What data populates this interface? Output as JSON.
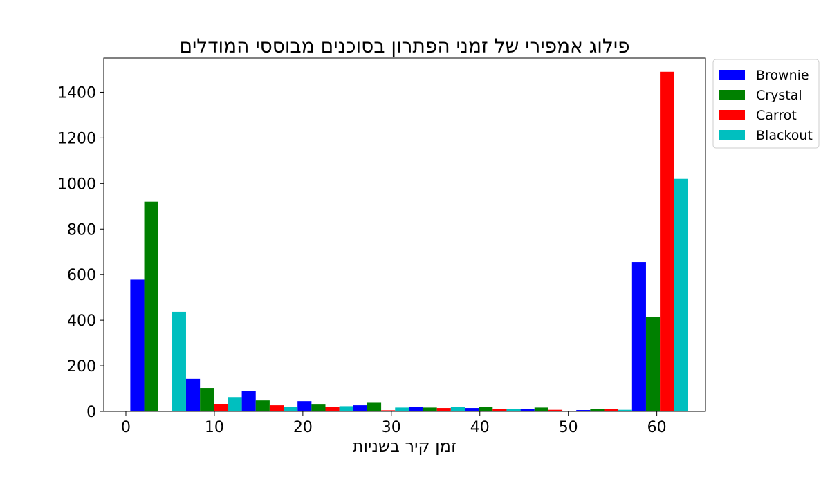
{
  "chart_data": {
    "type": "bar",
    "title": "פילוג אמפירי של זמני הפתרון בסוכנים מבוססי המודלים",
    "xlabel": "זמן קיר בשניות",
    "ylabel": "",
    "xlim": [
      -2.5,
      65.5
    ],
    "ylim": [
      0,
      1550
    ],
    "xticks": [
      0,
      10,
      20,
      30,
      40,
      50,
      60
    ],
    "yticks": [
      0,
      200,
      400,
      600,
      800,
      1000,
      1200,
      1400
    ],
    "bin_edges": [
      0.5,
      6.8,
      13.1,
      19.4,
      25.7,
      32.0,
      38.3,
      44.6,
      50.9,
      57.2,
      63.5
    ],
    "grid": false,
    "legend_position": "outside-top-right",
    "series": [
      {
        "name": "Brownie",
        "color": "#0000ff",
        "values": [
          578,
          143,
          88,
          45,
          27,
          21,
          15,
          12,
          6,
          655
        ]
      },
      {
        "name": "Crystal",
        "color": "#008000",
        "values": [
          920,
          103,
          48,
          30,
          38,
          17,
          20,
          17,
          12,
          413
        ]
      },
      {
        "name": "Carrot",
        "color": "#ff0000",
        "values": [
          0,
          33,
          27,
          20,
          5,
          15,
          10,
          7,
          10,
          1490
        ]
      },
      {
        "name": "Blackout",
        "color": "#00bfbf",
        "values": [
          437,
          63,
          21,
          23,
          17,
          20,
          10,
          0,
          7,
          1020
        ]
      }
    ]
  }
}
